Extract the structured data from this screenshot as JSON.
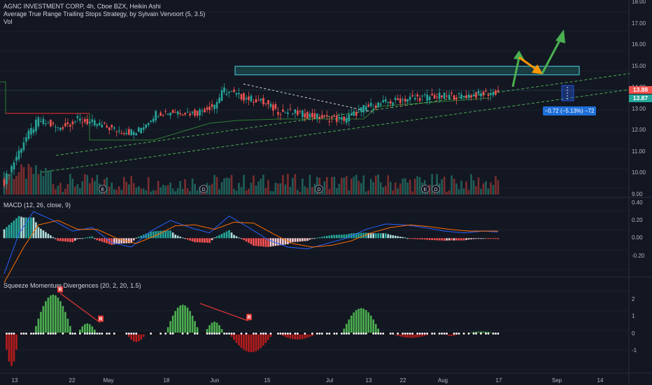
{
  "header": {
    "symbol_line": "AGNC INVESTMENT CORP, 4h, Cboe BZX, Heikin Ashi",
    "strategy_line": "Average True Range Trailing Stops Strategy, by Sylvain Vervoort (5, 3.5)",
    "vol_label": "Vol"
  },
  "macd_legend": "MACD (12, 26, close, 9)",
  "squeeze_legend": "Squeeze Momentum Divergences (20, 2, 20, 1.5)",
  "price_badges": {
    "last": "13.88",
    "other": "13.87"
  },
  "measure_label": "−0.72 (−5.13%) −72",
  "event_markers": [
    "E",
    "D",
    "D",
    "E",
    "D"
  ],
  "divergence_marker": "R",
  "colors": {
    "bg": "#131722",
    "up": "#26a69a",
    "down": "#ef5350",
    "macd": "#2962ff",
    "signal": "#ff6d00",
    "squeeze_up": "#4caf50",
    "squeeze_down": "#b71c1c",
    "arrow_green": "#4caf50",
    "arrow_orange": "#ff9800"
  },
  "chart_data": [
    {
      "type": "candlestick",
      "title": "AGNC INVESTMENT CORP, 4h, Cboe BZX, Heikin Ashi",
      "x_ticks": [
        "13",
        "22",
        "May",
        "18",
        "Jun",
        "15",
        "Jul",
        "13",
        "22",
        "Aug",
        "17",
        "Sep",
        "14"
      ],
      "y_ticks": [
        "18.00",
        "17.00",
        "16.00",
        "15.00",
        "14.00",
        "13.00",
        "12.00",
        "11.00",
        "10.00",
        "9.00"
      ],
      "ylim": [
        9,
        18
      ],
      "close_trend": [
        [
          0,
          9.6
        ],
        [
          8,
          11.5
        ],
        [
          14,
          12.5
        ],
        [
          22,
          12.1
        ],
        [
          30,
          12.5
        ],
        [
          38,
          12.3
        ],
        [
          46,
          12.0
        ],
        [
          54,
          11.9
        ],
        [
          62,
          12.8
        ],
        [
          70,
          12.9
        ],
        [
          78,
          12.8
        ],
        [
          86,
          13.2
        ],
        [
          90,
          13.9
        ],
        [
          96,
          13.6
        ],
        [
          104,
          13.4
        ],
        [
          112,
          12.9
        ],
        [
          120,
          12.8
        ],
        [
          130,
          12.6
        ],
        [
          138,
          12.5
        ],
        [
          142,
          12.7
        ],
        [
          148,
          13.1
        ],
        [
          156,
          13.3
        ],
        [
          166,
          13.5
        ],
        [
          176,
          13.6
        ],
        [
          186,
          13.6
        ],
        [
          196,
          13.7
        ],
        [
          202,
          13.8
        ]
      ],
      "resistance_zone": [
        14.6,
        15.0
      ],
      "last_price": 13.88,
      "measure": {
        "change": -0.72,
        "percent": -5.13,
        "bars": -72
      }
    },
    {
      "type": "line",
      "title": "MACD (12, 26, close, 9)",
      "y_ticks": [
        "0.40",
        "0.20",
        "0.00",
        "-0.20"
      ],
      "ylim": [
        -0.4,
        0.42
      ],
      "series": [
        {
          "name": "MACD",
          "values": [
            [
              0,
              -0.4
            ],
            [
              6,
              0.05
            ],
            [
              12,
              0.3
            ],
            [
              20,
              0.2
            ],
            [
              28,
              0.08
            ],
            [
              36,
              0.12
            ],
            [
              44,
              -0.05
            ],
            [
              52,
              -0.1
            ],
            [
              60,
              0.08
            ],
            [
              68,
              0.2
            ],
            [
              76,
              0.12
            ],
            [
              84,
              0.06
            ],
            [
              92,
              0.25
            ],
            [
              100,
              0.12
            ],
            [
              108,
              -0.02
            ],
            [
              116,
              -0.1
            ],
            [
              124,
              -0.12
            ],
            [
              132,
              -0.06
            ],
            [
              140,
              0.0
            ],
            [
              148,
              0.1
            ],
            [
              156,
              0.16
            ],
            [
              164,
              0.15
            ],
            [
              172,
              0.12
            ],
            [
              180,
              0.08
            ],
            [
              188,
              0.06
            ],
            [
              196,
              0.08
            ],
            [
              202,
              0.07
            ]
          ]
        },
        {
          "name": "Signal",
          "values": [
            [
              0,
              -0.5
            ],
            [
              8,
              -0.1
            ],
            [
              14,
              0.15
            ],
            [
              22,
              0.2
            ],
            [
              30,
              0.1
            ],
            [
              38,
              0.1
            ],
            [
              46,
              0.0
            ],
            [
              54,
              -0.06
            ],
            [
              62,
              0.03
            ],
            [
              70,
              0.14
            ],
            [
              78,
              0.15
            ],
            [
              86,
              0.1
            ],
            [
              94,
              0.18
            ],
            [
              102,
              0.17
            ],
            [
              110,
              0.05
            ],
            [
              118,
              -0.06
            ],
            [
              126,
              -0.1
            ],
            [
              134,
              -0.08
            ],
            [
              142,
              -0.03
            ],
            [
              150,
              0.06
            ],
            [
              158,
              0.12
            ],
            [
              166,
              0.15
            ],
            [
              174,
              0.13
            ],
            [
              182,
              0.1
            ],
            [
              190,
              0.08
            ],
            [
              198,
              0.08
            ],
            [
              202,
              0.08
            ]
          ]
        }
      ]
    },
    {
      "type": "bar",
      "title": "Squeeze Momentum Divergences (20, 2, 20, 1.5)",
      "y_ticks": [
        "2",
        "1",
        "0",
        "-1"
      ],
      "ylim": [
        -2,
        2.5
      ],
      "humps": [
        {
          "from": 0,
          "to": 6,
          "peak": -1.9
        },
        {
          "from": 12,
          "to": 28,
          "peak": 2.3
        },
        {
          "from": 30,
          "to": 38,
          "peak": 0.6
        },
        {
          "from": 50,
          "to": 58,
          "peak": -0.5
        },
        {
          "from": 66,
          "to": 80,
          "peak": 1.7
        },
        {
          "from": 82,
          "to": 90,
          "peak": 0.7
        },
        {
          "from": 92,
          "to": 110,
          "peak": -1.1
        },
        {
          "from": 112,
          "to": 128,
          "peak": -0.35
        },
        {
          "from": 138,
          "to": 154,
          "peak": 1.5
        },
        {
          "from": 158,
          "to": 175,
          "peak": -0.25
        },
        {
          "from": 180,
          "to": 186,
          "peak": -0.15
        },
        {
          "from": 188,
          "to": 202,
          "peak": 0.12
        }
      ]
    }
  ]
}
